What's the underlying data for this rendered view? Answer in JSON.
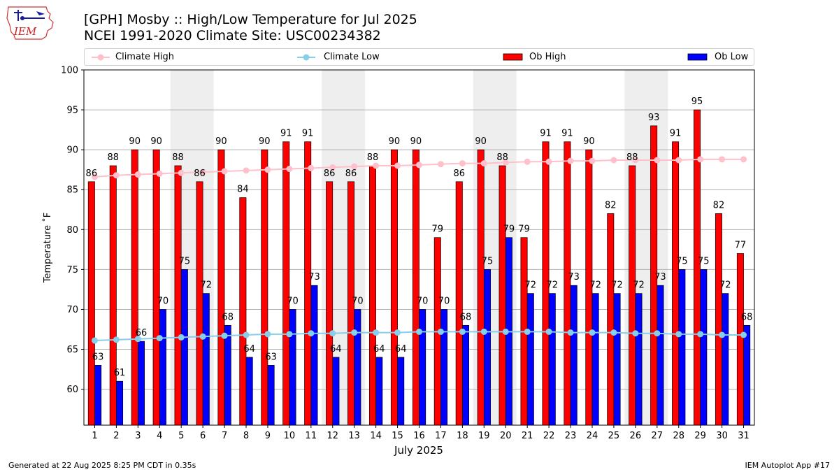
{
  "header": {
    "logo_text": "IEM",
    "title_line1": "[GPH] Mosby :: High/Low Temperature for Jul 2025",
    "title_line2": "NCEI 1991-2020 Climate Site: USC00234382"
  },
  "footer": {
    "generated": "Generated at 22 Aug 2025 8:25 PM CDT in 0.35s",
    "app": "IEM Autoplot App #17"
  },
  "colors": {
    "ob_high": "#ff0000",
    "ob_low": "#0000ff",
    "climate_high": "#ffc0cb",
    "climate_low": "#87ceeb",
    "weekend_band": "#eeeeee",
    "grid": "#b0b0b0"
  },
  "chart_data": {
    "type": "bar",
    "xlabel": "July 2025",
    "ylabel": "Temperature ˚F",
    "ylim": [
      55.5,
      100
    ],
    "yticks": [
      60,
      65,
      70,
      75,
      80,
      85,
      90,
      95,
      100
    ],
    "grid": "horizontal",
    "legend": "top",
    "shaded_days": [
      [
        5,
        6
      ],
      [
        12,
        13
      ],
      [
        19,
        20
      ],
      [
        26,
        27
      ]
    ],
    "categories": [
      "1",
      "2",
      "3",
      "4",
      "5",
      "6",
      "7",
      "8",
      "9",
      "10",
      "11",
      "12",
      "13",
      "14",
      "15",
      "16",
      "17",
      "18",
      "19",
      "20",
      "21",
      "22",
      "23",
      "24",
      "25",
      "26",
      "27",
      "28",
      "29",
      "30",
      "31"
    ],
    "series": [
      {
        "name": "Climate High",
        "kind": "line",
        "values": [
          86.6,
          86.8,
          86.9,
          87.0,
          87.1,
          87.2,
          87.3,
          87.4,
          87.5,
          87.6,
          87.7,
          87.8,
          87.9,
          88.0,
          88.0,
          88.1,
          88.2,
          88.3,
          88.3,
          88.4,
          88.5,
          88.5,
          88.6,
          88.6,
          88.7,
          88.7,
          88.7,
          88.7,
          88.8,
          88.8,
          88.8
        ]
      },
      {
        "name": "Climate Low",
        "kind": "line",
        "values": [
          66.1,
          66.2,
          66.3,
          66.4,
          66.5,
          66.6,
          66.7,
          66.8,
          66.9,
          66.9,
          67.0,
          67.0,
          67.1,
          67.1,
          67.1,
          67.2,
          67.2,
          67.2,
          67.2,
          67.2,
          67.2,
          67.2,
          67.1,
          67.1,
          67.1,
          67.0,
          67.0,
          66.9,
          66.9,
          66.8,
          66.8
        ]
      },
      {
        "name": "Ob High",
        "kind": "bar",
        "values": [
          86,
          88,
          90,
          90,
          88,
          86,
          90,
          84,
          90,
          91,
          91,
          86,
          86,
          88,
          90,
          90,
          79,
          86,
          90,
          88,
          79,
          91,
          91,
          90,
          82,
          88,
          93,
          91,
          95,
          82,
          77
        ]
      },
      {
        "name": "Ob Low",
        "kind": "bar",
        "values": [
          63,
          61,
          66,
          70,
          75,
          72,
          68,
          64,
          63,
          70,
          73,
          64,
          70,
          64,
          64,
          70,
          70,
          68,
          75,
          79,
          72,
          72,
          73,
          72,
          72,
          72,
          73,
          75,
          75,
          72,
          68
        ]
      }
    ]
  }
}
